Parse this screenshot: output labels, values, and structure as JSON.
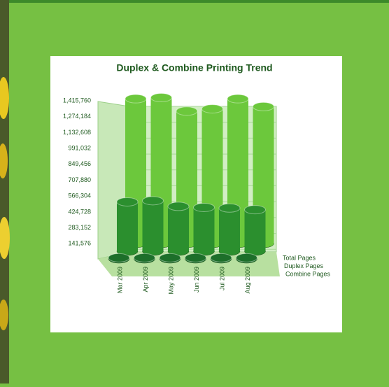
{
  "chart_data": {
    "type": "bar3d",
    "title": "Duplex & Combine Printing Trend",
    "categories": [
      "Mar 2009",
      "Apr 2009",
      "May 2009",
      "Jun 2009",
      "Jul 2009",
      "Aug 2009"
    ],
    "series": [
      {
        "name": "Total Pages",
        "color": "#6cc83c",
        "values": [
          1290000,
          1300000,
          1180000,
          1200000,
          1290000,
          1220000
        ]
      },
      {
        "name": "Duplex Pages",
        "color": "#2b8f2e",
        "values": [
          440000,
          450000,
          400000,
          390000,
          385000,
          370000
        ]
      },
      {
        "name": "Combine Pages",
        "color": "#1d6f2a",
        "values": [
          10000,
          10000,
          10000,
          10000,
          10000,
          10000
        ]
      }
    ],
    "ylim": [
      0,
      1415760
    ],
    "yticks": [
      {
        "value": 141576,
        "label": "141,576"
      },
      {
        "value": 283152,
        "label": "283,152"
      },
      {
        "value": 424728,
        "label": "424,728"
      },
      {
        "value": 566304,
        "label": "566,304"
      },
      {
        "value": 707880,
        "label": "707,880"
      },
      {
        "value": 849456,
        "label": "849,456"
      },
      {
        "value": 991032,
        "label": "991,032"
      },
      {
        "value": 1132608,
        "label": "1,132,608"
      },
      {
        "value": 1274184,
        "label": "1,274,184"
      },
      {
        "value": 1415760,
        "label": "1,415,760"
      }
    ],
    "grid": true
  }
}
